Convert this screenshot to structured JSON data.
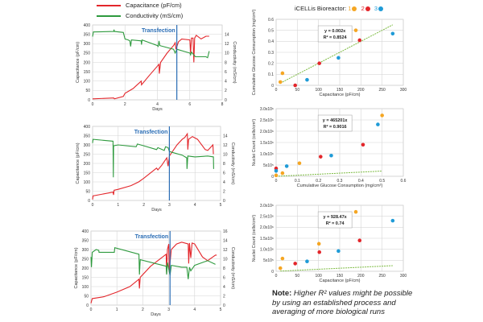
{
  "legend": {
    "capacitance": {
      "label": "Capacitance (pF/cm)",
      "color": "#e3262b"
    },
    "conductivity": {
      "label": "Conductivity (mS/cm)",
      "color": "#2e9a3e"
    }
  },
  "scatter_legend": {
    "title": "iCELLis Bioreactor:",
    "items": [
      {
        "label": "1",
        "color": "#f5a623"
      },
      {
        "label": "2",
        "color": "#e3262b"
      },
      {
        "label": "3",
        "color": "#1f9bd7"
      }
    ]
  },
  "note": {
    "bold": "Note:",
    "text": " Higher R² values might be possible by using an established process and averaging of more biological runs"
  },
  "chart_data": [
    {
      "type": "line",
      "xlabel": "Days",
      "ylabel": "Capacitance (pF/cm)",
      "y2label": "Conductivity (mS/cm)",
      "xlim": [
        0,
        8
      ],
      "xticks": [
        0,
        2,
        4,
        6,
        8
      ],
      "ylim": [
        0,
        400
      ],
      "yticks": [
        0,
        50,
        100,
        150,
        200,
        250,
        300,
        350,
        400
      ],
      "y2lim": [
        0,
        16
      ],
      "y2ticks": [
        0,
        2,
        4,
        6,
        8,
        10,
        12,
        14
      ],
      "grid": true,
      "annotation": {
        "label": "Transfection",
        "x": 5.2,
        "color": "#2a6db5"
      },
      "series": [
        {
          "name": "Capacitance (pF/cm)",
          "axis": "left",
          "color": "#e3262b",
          "points": [
            [
              0,
              5
            ],
            [
              1.3,
              10
            ],
            [
              1.35,
              5
            ],
            [
              1.9,
              18
            ],
            [
              2,
              35
            ],
            [
              2.5,
              60
            ],
            [
              3,
              100
            ],
            [
              3.02,
              80
            ],
            [
              3.5,
              130
            ],
            [
              4,
              180
            ],
            [
              4.1,
              190
            ],
            [
              4.12,
              140
            ],
            [
              4.2,
              200
            ],
            [
              4.6,
              250
            ],
            [
              5,
              290
            ],
            [
              5.1,
              305
            ],
            [
              5.15,
              270
            ],
            [
              5.3,
              310
            ],
            [
              5.5,
              325
            ],
            [
              6,
              320
            ],
            [
              6.05,
              250
            ],
            [
              6.1,
              330
            ],
            [
              6.2,
              330
            ],
            [
              6.25,
              200
            ],
            [
              6.3,
              330
            ],
            [
              6.4,
              345
            ],
            [
              6.7,
              325
            ],
            [
              7,
              340
            ],
            [
              7.2,
              340
            ]
          ]
        },
        {
          "name": "Conductivity (mS/cm)",
          "axis": "right",
          "color": "#2e9a3e",
          "points": [
            [
              0,
              13.5
            ],
            [
              0.05,
              14.5
            ],
            [
              1.3,
              14.6
            ],
            [
              1.32,
              15
            ],
            [
              1.35,
              14.6
            ],
            [
              1.9,
              14.4
            ],
            [
              2,
              13
            ],
            [
              2.2,
              12.8
            ],
            [
              2.3,
              12.6
            ],
            [
              2.35,
              11.4
            ],
            [
              2.4,
              12.8
            ],
            [
              3,
              12.6
            ],
            [
              3.02,
              11.8
            ],
            [
              3.05,
              12.8
            ],
            [
              4,
              11.6
            ],
            [
              4.05,
              11.4
            ],
            [
              4.1,
              12.6
            ],
            [
              4.15,
              11.6
            ],
            [
              5,
              10.8
            ],
            [
              5.1,
              10
            ],
            [
              5.2,
              10.8
            ],
            [
              6,
              10
            ],
            [
              6.05,
              9.6
            ],
            [
              6.1,
              10.2
            ],
            [
              6.2,
              9.8
            ],
            [
              6.3,
              9.4
            ],
            [
              6.35,
              9.2
            ],
            [
              7,
              9.2
            ],
            [
              7.1,
              9
            ],
            [
              7.2,
              10.4
            ]
          ]
        }
      ]
    },
    {
      "type": "line",
      "xlabel": "Days",
      "ylabel": "Capacitance (pF/cm)",
      "y2label": "Conductivity (mS/cm)",
      "xlim": [
        0,
        5
      ],
      "xticks": [
        0,
        1,
        2,
        3,
        4,
        5
      ],
      "ylim": [
        0,
        400
      ],
      "yticks": [
        0,
        50,
        100,
        150,
        200,
        250,
        300,
        350,
        400
      ],
      "y2lim": [
        0,
        16
      ],
      "y2ticks": [
        0,
        2,
        4,
        6,
        8,
        10,
        12,
        14
      ],
      "grid": true,
      "annotation": {
        "label": "Transfection",
        "x": 3,
        "color": "#2a6db5"
      },
      "series": [
        {
          "name": "Capacitance (pF/cm)",
          "axis": "left",
          "color": "#e3262b",
          "points": [
            [
              0,
              5
            ],
            [
              0.02,
              25
            ],
            [
              0.8,
              45
            ],
            [
              0.82,
              30
            ],
            [
              0.84,
              55
            ],
            [
              1,
              60
            ],
            [
              1.5,
              80
            ],
            [
              1.8,
              100
            ],
            [
              2,
              120
            ],
            [
              2.5,
              175
            ],
            [
              2.55,
              165
            ],
            [
              2.7,
              190
            ],
            [
              2.9,
              230
            ],
            [
              2.95,
              185
            ],
            [
              3,
              240
            ],
            [
              3.3,
              300
            ],
            [
              3.5,
              330
            ],
            [
              3.6,
              340
            ],
            [
              3.7,
              360
            ],
            [
              3.72,
              275
            ],
            [
              3.75,
              330
            ],
            [
              3.9,
              345
            ],
            [
              4.1,
              330
            ],
            [
              4.4,
              275
            ],
            [
              4.5,
              270
            ],
            [
              4.7,
              300
            ],
            [
              4.72,
              250
            ]
          ]
        },
        {
          "name": "Conductivity (mS/cm)",
          "axis": "right",
          "color": "#2e9a3e",
          "points": [
            [
              0,
              12.4
            ],
            [
              0.02,
              13.2
            ],
            [
              0.8,
              12.8
            ],
            [
              0.81,
              5
            ],
            [
              0.82,
              11.8
            ],
            [
              1,
              12
            ],
            [
              1.7,
              11.6
            ],
            [
              1.75,
              12.2
            ],
            [
              2,
              11.8
            ],
            [
              2.5,
              11
            ],
            [
              2.55,
              11.4
            ],
            [
              2.8,
              10.8
            ],
            [
              2.85,
              11.6
            ],
            [
              2.95,
              11.4
            ],
            [
              3,
              10.6
            ],
            [
              3.1,
              10.4
            ],
            [
              3.5,
              9.8
            ],
            [
              3.68,
              9.2
            ],
            [
              3.69,
              6.8
            ],
            [
              3.72,
              9.6
            ],
            [
              4,
              9.4
            ],
            [
              4.5,
              9.6
            ],
            [
              4.72,
              9.4
            ],
            [
              4.73,
              6.8
            ]
          ]
        }
      ]
    },
    {
      "type": "line",
      "xlabel": "Days",
      "ylabel": "Capacitance (pF/cm)",
      "y2label": "Conductivity (mS/cm)",
      "xlim": [
        0,
        5
      ],
      "xticks": [
        0,
        1,
        2,
        3,
        4,
        5
      ],
      "ylim": [
        0,
        400
      ],
      "yticks": [
        0,
        50,
        100,
        150,
        200,
        250,
        300,
        350,
        400
      ],
      "y2lim": [
        0,
        16
      ],
      "y2ticks": [
        0,
        2,
        4,
        6,
        8,
        10,
        12,
        14,
        16
      ],
      "grid": true,
      "annotation": {
        "label": "Transfection",
        "x": 3.05,
        "color": "#2a6db5"
      },
      "series": [
        {
          "name": "Capacitance (pF/cm)",
          "axis": "left",
          "color": "#e3262b",
          "points": [
            [
              0,
              10
            ],
            [
              0.05,
              35
            ],
            [
              0.5,
              45
            ],
            [
              1,
              70
            ],
            [
              1.5,
              100
            ],
            [
              1.85,
              140
            ],
            [
              1.87,
              90
            ],
            [
              1.9,
              150
            ],
            [
              2.3,
              210
            ],
            [
              2.9,
              275
            ],
            [
              2.92,
              170
            ],
            [
              2.95,
              300
            ],
            [
              3,
              330
            ],
            [
              3.02,
              180
            ],
            [
              3.1,
              300
            ],
            [
              3.3,
              330
            ],
            [
              3.5,
              340
            ],
            [
              3.75,
              330
            ],
            [
              3.77,
              225
            ],
            [
              3.8,
              335
            ],
            [
              3.85,
              255
            ],
            [
              3.9,
              335
            ],
            [
              4,
              330
            ],
            [
              4.3,
              260
            ],
            [
              4.5,
              240
            ],
            [
              4.8,
              270
            ],
            [
              4.85,
              270
            ]
          ]
        },
        {
          "name": "Conductivity (mS/cm)",
          "axis": "right",
          "color": "#2e9a3e",
          "points": [
            [
              0,
              10.4
            ],
            [
              0.02,
              8.2
            ],
            [
              0.05,
              11.4
            ],
            [
              0.2,
              12
            ],
            [
              0.3,
              11.8
            ],
            [
              0.31,
              11.4
            ],
            [
              0.9,
              11.4
            ],
            [
              0.92,
              12.4
            ],
            [
              1.85,
              11
            ],
            [
              1.87,
              6.6
            ],
            [
              1.9,
              9.8
            ],
            [
              2.9,
              8.4
            ],
            [
              2.92,
              6.6
            ],
            [
              2.95,
              9.2
            ],
            [
              3.05,
              6.4
            ],
            [
              3.1,
              8.6
            ],
            [
              3.5,
              8.2
            ],
            [
              3.7,
              8.2
            ],
            [
              3.75,
              5.6
            ],
            [
              3.8,
              8.2
            ],
            [
              3.85,
              7.4
            ],
            [
              4,
              8.6
            ],
            [
              4.5,
              9.6
            ],
            [
              4.8,
              8.8
            ]
          ]
        }
      ]
    },
    {
      "type": "scatter",
      "xlabel": "Capacitance (pF/cm)",
      "ylabel": "Cumulative Glucose Consumption (mg/cm²)",
      "xlim": [
        0,
        300
      ],
      "xticks": [
        "0",
        "50",
        "100",
        "150",
        "200",
        "250",
        "300"
      ],
      "ylim": [
        0,
        0.6
      ],
      "yticks": [
        "0",
        "0.1",
        "0.2",
        "0.3",
        "0.4",
        "0.5",
        "0.6"
      ],
      "grid": true,
      "trendline": {
        "slope": 0.002,
        "x_range": [
          10,
          275
        ],
        "color": "#7dbb42",
        "equation": "y = 0.002x",
        "r2": "R² = 0.8524"
      },
      "series": [
        {
          "name": "1",
          "color": "#f5a623",
          "points": [
            [
              10,
              0.03
            ],
            [
              15,
              0.11
            ],
            [
              188,
              0.5
            ]
          ]
        },
        {
          "name": "2",
          "color": "#e3262b",
          "points": [
            [
              45,
              0
            ],
            [
              102,
              0.2
            ],
            [
              197,
              0.41
            ]
          ]
        },
        {
          "name": "3",
          "color": "#1f9bd7",
          "points": [
            [
              73,
              0.05
            ],
            [
              147,
              0.25
            ],
            [
              275,
              0.47
            ]
          ]
        }
      ]
    },
    {
      "type": "scatter",
      "xlabel": "Cumulative Glucose Consumption (mg/cm²)",
      "ylabel": "Nuclei Count (cells/cm²)",
      "xlim": [
        0,
        0.6
      ],
      "xticks": [
        "0",
        "0.1",
        "0.2",
        "0.3",
        "0.4",
        "0.5",
        "0.6"
      ],
      "ylim": [
        0,
        3000000
      ],
      "yticks": [
        "0",
        "5x10⁵",
        "1.0x10⁶",
        "1.5x10⁶",
        "2.0x10⁶",
        "2.5x10⁶",
        "3.0x10⁶"
      ],
      "grid": true,
      "trendline": {
        "slope": 465201,
        "x_range": [
          0,
          0.5
        ],
        "color": "#7dbb42",
        "equation": "y = 465201x",
        "r2": "R² = 0.9016"
      },
      "series": [
        {
          "name": "1",
          "color": "#f5a623",
          "points": [
            [
              0,
              40000
            ],
            [
              0.03,
              140000
            ],
            [
              0.11,
              580000
            ],
            [
              0.5,
              2700000
            ]
          ]
        },
        {
          "name": "2",
          "color": "#e3262b",
          "points": [
            [
              0,
              350000
            ],
            [
              0.21,
              870000
            ],
            [
              0.41,
              1400000
            ]
          ]
        },
        {
          "name": "3",
          "color": "#1f9bd7",
          "points": [
            [
              0,
              240000
            ],
            [
              0.05,
              450000
            ],
            [
              0.26,
              920000
            ],
            [
              0.48,
              2300000
            ]
          ]
        }
      ]
    },
    {
      "type": "scatter",
      "xlabel": "Capacitance (pF/cm)",
      "ylabel": "Nuclei Count (cells/cm²)",
      "xlim": [
        0,
        300
      ],
      "xticks": [
        "0",
        "50",
        "100",
        "150",
        "200",
        "250",
        "300"
      ],
      "ylim": [
        0,
        3000000
      ],
      "yticks": [
        "0",
        "5x10⁵",
        "1.0x10⁶",
        "1.5x10⁶",
        "2.0x10⁶",
        "2.5x10⁶",
        "3.0x10⁶"
      ],
      "grid": true,
      "trendline": {
        "slope": 928.47,
        "x_range": [
          10,
          275
        ],
        "color": "#7dbb42",
        "equation": "y = 928.47x",
        "r2": "R² = 0.74"
      },
      "series": [
        {
          "name": "1",
          "color": "#f5a623",
          "points": [
            [
              10,
              140000
            ],
            [
              15,
              580000
            ],
            [
              101,
              1250000
            ],
            [
              188,
              2700000
            ]
          ]
        },
        {
          "name": "2",
          "color": "#e3262b",
          "points": [
            [
              45,
              350000
            ],
            [
              102,
              870000
            ],
            [
              197,
              1400000
            ]
          ]
        },
        {
          "name": "3",
          "color": "#1f9bd7",
          "points": [
            [
              73,
              450000
            ],
            [
              147,
              920000
            ],
            [
              275,
              2300000
            ]
          ]
        }
      ]
    }
  ]
}
